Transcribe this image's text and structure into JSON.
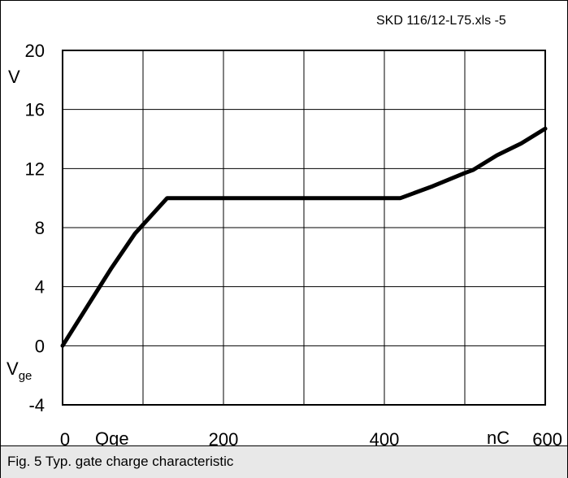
{
  "file_label": "SKD 116/12-L75.xls -5",
  "caption": "Fig. 5 Typ. gate charge characteristic",
  "chart_data": {
    "type": "line",
    "title": "",
    "xlabel": "Qge",
    "xunit": "nC",
    "ylabel": "Vge",
    "ylabel_main": "V",
    "ylabel_sub": "ge",
    "yunit": "V",
    "xlim": [
      0,
      600
    ],
    "ylim": [
      -4,
      20
    ],
    "x_ticks": [
      {
        "value": 0,
        "label": "0"
      },
      {
        "value": 200,
        "label": "200"
      },
      {
        "value": 400,
        "label": "400"
      },
      {
        "value": 600,
        "label": "600"
      }
    ],
    "y_ticks": [
      {
        "value": 20,
        "label": "20"
      },
      {
        "value": 16,
        "label": "16"
      },
      {
        "value": 12,
        "label": "12"
      },
      {
        "value": 8,
        "label": "8"
      },
      {
        "value": 4,
        "label": "4"
      },
      {
        "value": 0,
        "label": "0"
      },
      {
        "value": -4,
        "label": "-4"
      }
    ],
    "grid": {
      "x_step": 100,
      "y_step": 4,
      "on": true
    },
    "line_color": "#000000",
    "series": [
      {
        "x": [
          0,
          30,
          60,
          90,
          130,
          420,
          460,
          500,
          510,
          540,
          570,
          600
        ],
        "y": [
          0,
          2.6,
          5.2,
          7.6,
          10,
          10,
          10.8,
          11.7,
          11.9,
          12.9,
          13.7,
          14.7
        ]
      }
    ]
  }
}
